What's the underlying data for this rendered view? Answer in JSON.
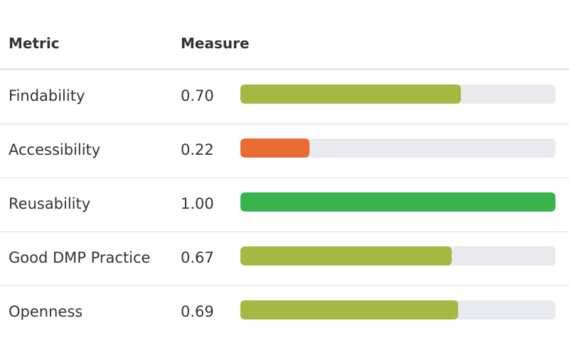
{
  "header": {
    "metric_label": "Metric",
    "measure_label": "Measure"
  },
  "rows": [
    {
      "metric": "Findability",
      "value_text": "0.70",
      "value": 0.7,
      "color": "#a6b842"
    },
    {
      "metric": "Accessibility",
      "value_text": "0.22",
      "value": 0.22,
      "color": "#e86d35"
    },
    {
      "metric": "Reusability",
      "value_text": "1.00",
      "value": 1.0,
      "color": "#39b34b"
    },
    {
      "metric": "Good DMP Practice",
      "value_text": "0.67",
      "value": 0.67,
      "color": "#a6b842"
    },
    {
      "metric": "Openness",
      "value_text": "0.69",
      "value": 0.69,
      "color": "#a6b842"
    }
  ],
  "colors": {
    "track": "#e8eaed",
    "text": "#333333"
  }
}
